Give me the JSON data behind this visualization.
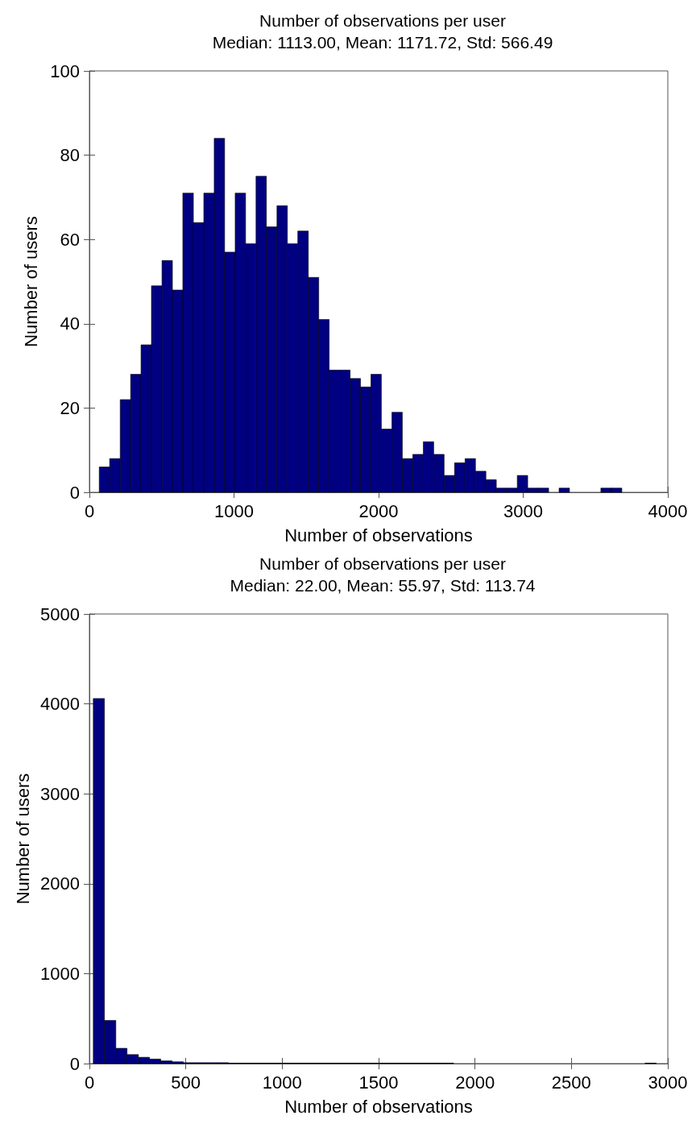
{
  "chart_data": [
    {
      "type": "histogram",
      "title": "Number of observations per user",
      "subtitle": "Median: 1113.00, Mean: 1171.72, Std: 566.49",
      "xlabel": "Number of observations",
      "ylabel": "Number of users",
      "color": "#000080",
      "bins": [
        68,
        140,
        213,
        285,
        357,
        429,
        502,
        574,
        646,
        719,
        791,
        863,
        935,
        1008,
        1080,
        1152,
        1224,
        1297,
        1369,
        1441,
        1514,
        1586,
        1658,
        1730,
        1803,
        1875,
        1947,
        2019,
        2092,
        2164,
        2236,
        2309,
        2381,
        2453,
        2525,
        2598,
        2670,
        2742,
        2814,
        2887,
        2959,
        3031,
        3104,
        3176,
        3248,
        3320,
        3393,
        3465,
        3537,
        3610,
        3682
      ],
      "values": [
        6,
        8,
        22,
        28,
        35,
        49,
        55,
        48,
        71,
        64,
        71,
        84,
        57,
        71,
        59,
        75,
        63,
        68,
        59,
        62,
        51,
        41,
        29,
        29,
        27,
        25,
        28,
        15,
        19,
        8,
        9,
        12,
        9,
        4,
        7,
        8,
        5,
        3,
        1,
        1,
        4,
        1,
        1,
        0,
        1,
        0,
        0,
        0,
        1,
        1
      ],
      "xlim": [
        0,
        4000
      ],
      "xticks": [
        0,
        1000,
        2000,
        3000,
        4000
      ],
      "ylim": [
        0,
        100
      ],
      "yticks": [
        0,
        20,
        40,
        60,
        80,
        100
      ]
    },
    {
      "type": "histogram",
      "title": "Number of observations per user",
      "subtitle": "Median: 22.00, Mean: 55.97, Std: 113.74",
      "xlabel": "Number of observations",
      "ylabel": "Number of users",
      "color": "#000080",
      "bins": [
        20,
        78,
        137,
        195,
        254,
        312,
        370,
        429,
        487,
        546,
        604,
        662,
        721,
        779,
        838,
        896,
        954,
        1013,
        1071,
        1130,
        1188,
        1246,
        1305,
        1363,
        1422,
        1480,
        1538,
        1597,
        1655,
        1714,
        1772,
        1830,
        1889,
        1947,
        2006,
        2064,
        2122,
        2181,
        2239,
        2298,
        2356,
        2414,
        2473,
        2531,
        2590,
        2648,
        2706,
        2765,
        2823,
        2882,
        2940
      ],
      "values": [
        4060,
        480,
        170,
        100,
        70,
        50,
        30,
        20,
        10,
        10,
        10,
        10,
        5,
        5,
        5,
        5,
        5,
        5,
        5,
        5,
        5,
        5,
        5,
        5,
        5,
        5,
        5,
        5,
        5,
        5,
        5,
        5,
        0,
        0,
        0,
        0,
        0,
        0,
        0,
        0,
        0,
        0,
        0,
        0,
        0,
        0,
        0,
        0,
        0,
        5
      ],
      "xlim": [
        0,
        3000
      ],
      "xticks": [
        0,
        500,
        1000,
        1500,
        2000,
        2500,
        3000
      ],
      "ylim": [
        0,
        5000
      ],
      "yticks": [
        0,
        1000,
        2000,
        3000,
        4000,
        5000
      ]
    }
  ]
}
